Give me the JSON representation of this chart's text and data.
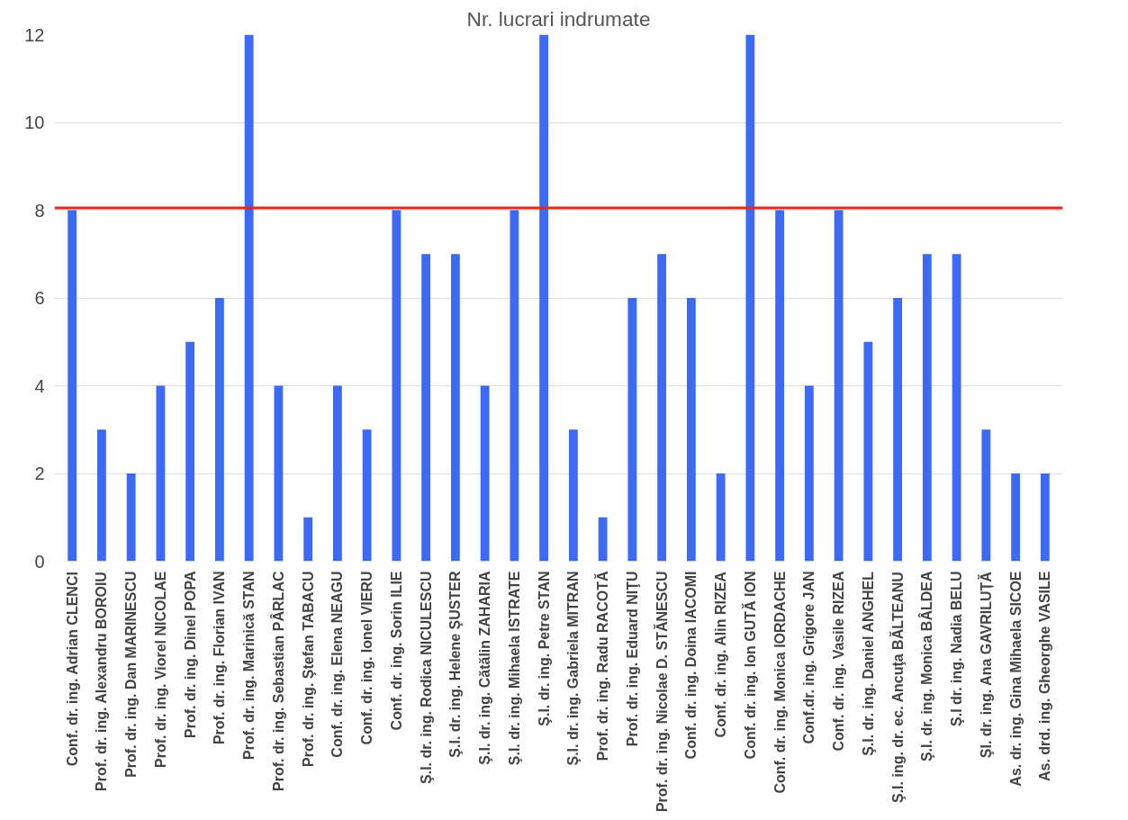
{
  "chart_data": {
    "type": "bar",
    "title": "Nr. lucrari indrumate",
    "categories": [
      "Conf. dr. ing. Adrian CLENCI",
      "Prof. dr. ing. Alexandru BOROIU",
      "Prof. dr. ing. Dan MARINESCU",
      "Prof. dr. ing. Viorel NICOLAE",
      "Prof. dr. ing. Dinel POPA",
      "Prof. dr. ing. Florian IVAN",
      "Prof. dr. ing. Marinică STAN",
      "Prof. dr. ing. Sebastian PÂRLAC",
      "Prof. dr. ing. Ştefan TABACU",
      "Conf. dr. ing. Elena NEAGU",
      "Conf. dr. ing. Ionel VIERU",
      "Conf. dr. ing. Sorin ILIE",
      "Ş.I. dr. ing. Rodica NICULESCU",
      "Ş.I. dr. ing. Helene ŞUSTER",
      "Ş.I. dr. ing. Cătălin ZAHARIA",
      "Ş.I. dr. ing. Mihaela ISTRATE",
      "Ş.I. dr. ing. Petre STAN",
      "Ş.I. dr. ing. Gabriela MITRAN",
      "Prof. dr. ing. Radu RACOTĂ",
      "Prof. dr. ing. Eduard NIŢU",
      "Prof. dr. ing. Nicolae D. STĂNESCU",
      "Conf. dr. ing. Doina IACOMI",
      "Conf. dr. ing. Alin RIZEA",
      "Conf. dr. ing. Ion GUTĂ ION",
      "Conf. dr. ing. Monica IORDACHE",
      "Conf.dr. ing. Grigore JAN",
      "Conf. dr. ing. Vasile RIZEA",
      "Ş.I. dr. ing. Daniel ANGHEL",
      "Ş.I. ing. dr. ec. Ancuţa BĂLTEANU",
      "Ş.I. dr. ing. Monica BÂLDEA",
      "Ş.I dr. ing. Nadia BELU",
      "ŞI. dr. ing. Ana GAVRILUȚĂ",
      "As. dr. ing. Gina Mihaela SICOE",
      "As. drd. ing. Gheorghe VASILE"
    ],
    "values": [
      8,
      3,
      2,
      4,
      5,
      6,
      12,
      4,
      1,
      4,
      3,
      8,
      7,
      7,
      4,
      8,
      12,
      3,
      1,
      6,
      7,
      6,
      2,
      12,
      8,
      4,
      8,
      5,
      6,
      7,
      7,
      3,
      2,
      2
    ],
    "color": "#3d6af5",
    "ylim": [
      0,
      12
    ],
    "yticks": [
      0,
      2,
      4,
      6,
      8,
      10,
      12
    ],
    "grid": "y",
    "ref_lines": [
      {
        "axis": "y",
        "value": 8.05,
        "color": "#e8251f"
      }
    ]
  }
}
